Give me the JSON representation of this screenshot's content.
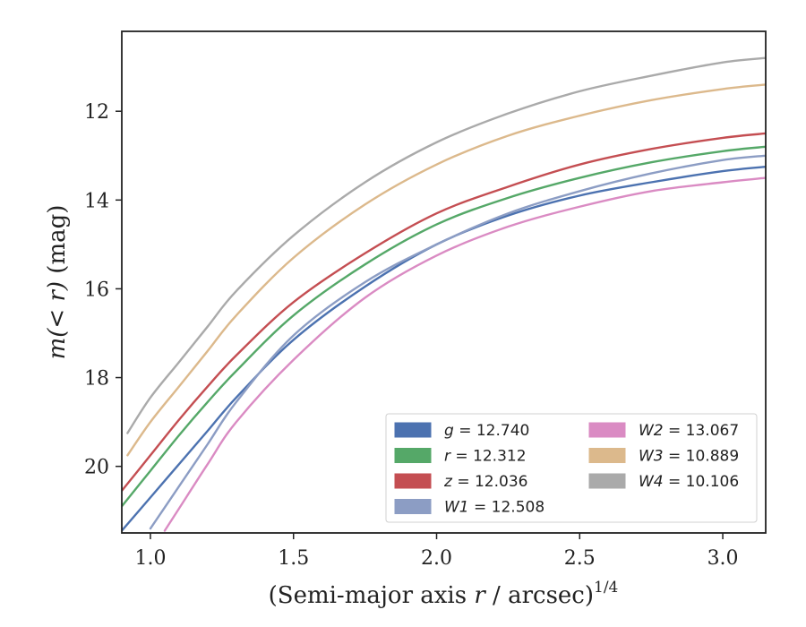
{
  "chart_data": {
    "type": "line",
    "xlabel": "(Semi-major axis r / arcsec)",
    "xlabel_var": "r",
    "xlabel_pre": "(Semi-major axis ",
    "xlabel_post": " / arcsec)",
    "xlabel_sup": "1/4",
    "ylabel": "m(< r) (mag)",
    "ylabel_main": "m(< r)",
    "ylabel_unit": " (mag)",
    "xlim": [
      0.9,
      3.15
    ],
    "ylim": [
      21.5,
      10.2
    ],
    "y_inverted": true,
    "xticks": [
      1.0,
      1.5,
      2.0,
      2.5,
      3.0
    ],
    "xtick_labels": [
      "1.0",
      "1.5",
      "2.0",
      "2.5",
      "3.0"
    ],
    "yticks": [
      12,
      14,
      16,
      18,
      20
    ],
    "ytick_labels": [
      "12",
      "14",
      "16",
      "18",
      "20"
    ],
    "grid": false,
    "legend_position": "lower-right",
    "series": [
      {
        "name": "g = 12.740",
        "band": "g",
        "mag": "12.740",
        "color": "#4c72b0",
        "x": [
          0.9,
          1.0,
          1.1,
          1.2,
          1.3,
          1.5,
          1.75,
          2.0,
          2.25,
          2.5,
          2.75,
          3.0,
          3.15
        ],
        "y": [
          21.45,
          20.7,
          19.95,
          19.2,
          18.45,
          17.15,
          15.95,
          15.0,
          14.35,
          13.9,
          13.6,
          13.35,
          13.25
        ]
      },
      {
        "name": "r = 12.312",
        "band": "r",
        "mag": "12.312",
        "color": "#55a868",
        "x": [
          0.9,
          1.0,
          1.1,
          1.2,
          1.3,
          1.5,
          1.75,
          2.0,
          2.25,
          2.5,
          2.75,
          3.0,
          3.15
        ],
        "y": [
          20.9,
          20.1,
          19.3,
          18.55,
          17.85,
          16.6,
          15.45,
          14.55,
          13.95,
          13.5,
          13.15,
          12.9,
          12.8
        ]
      },
      {
        "name": "z = 12.036",
        "band": "z",
        "mag": "12.036",
        "color": "#c44e52",
        "x": [
          0.9,
          1.0,
          1.1,
          1.2,
          1.3,
          1.5,
          1.75,
          2.0,
          2.25,
          2.5,
          2.75,
          3.0,
          3.15
        ],
        "y": [
          20.55,
          19.75,
          18.95,
          18.2,
          17.5,
          16.3,
          15.2,
          14.3,
          13.7,
          13.2,
          12.85,
          12.6,
          12.5
        ]
      },
      {
        "name": "W1 = 12.508",
        "band": "W1",
        "mag": "12.508",
        "color": "#8c9dc4",
        "x": [
          1.0,
          1.1,
          1.2,
          1.3,
          1.5,
          1.75,
          2.0,
          2.25,
          2.5,
          2.75,
          3.0,
          3.15
        ],
        "y": [
          21.4,
          20.45,
          19.5,
          18.55,
          17.05,
          15.85,
          15.0,
          14.3,
          13.8,
          13.4,
          13.1,
          13.0
        ]
      },
      {
        "name": "W2 = 13.067",
        "band": "W2",
        "mag": "13.067",
        "color": "#da8bc3",
        "x": [
          1.05,
          1.1,
          1.2,
          1.3,
          1.5,
          1.75,
          2.0,
          2.25,
          2.5,
          2.75,
          3.0,
          3.15
        ],
        "y": [
          21.45,
          20.95,
          19.95,
          19.0,
          17.6,
          16.2,
          15.25,
          14.6,
          14.15,
          13.8,
          13.6,
          13.5
        ]
      },
      {
        "name": "W3 = 10.889",
        "band": "W3",
        "mag": "10.889",
        "color": "#dcb98c",
        "x": [
          0.92,
          1.0,
          1.1,
          1.2,
          1.3,
          1.5,
          1.75,
          2.0,
          2.25,
          2.5,
          2.75,
          3.0,
          3.15
        ],
        "y": [
          19.75,
          19.0,
          18.2,
          17.4,
          16.6,
          15.3,
          14.1,
          13.2,
          12.55,
          12.1,
          11.75,
          11.5,
          11.4
        ]
      },
      {
        "name": "W4 = 10.106",
        "band": "W4",
        "mag": "10.106",
        "color": "#aaaaaa",
        "x": [
          0.92,
          1.0,
          1.1,
          1.2,
          1.3,
          1.5,
          1.75,
          2.0,
          2.25,
          2.5,
          2.75,
          3.0,
          3.15
        ],
        "y": [
          19.25,
          18.45,
          17.65,
          16.85,
          16.05,
          14.8,
          13.6,
          12.7,
          12.05,
          11.55,
          11.2,
          10.9,
          10.8
        ]
      }
    ],
    "legend_columns": [
      [
        "g = 12.740",
        "r = 12.312",
        "z = 12.036",
        "W1 = 12.508"
      ],
      [
        "W2 = 13.067",
        "W3 = 10.889",
        "W4 = 10.106"
      ]
    ]
  }
}
